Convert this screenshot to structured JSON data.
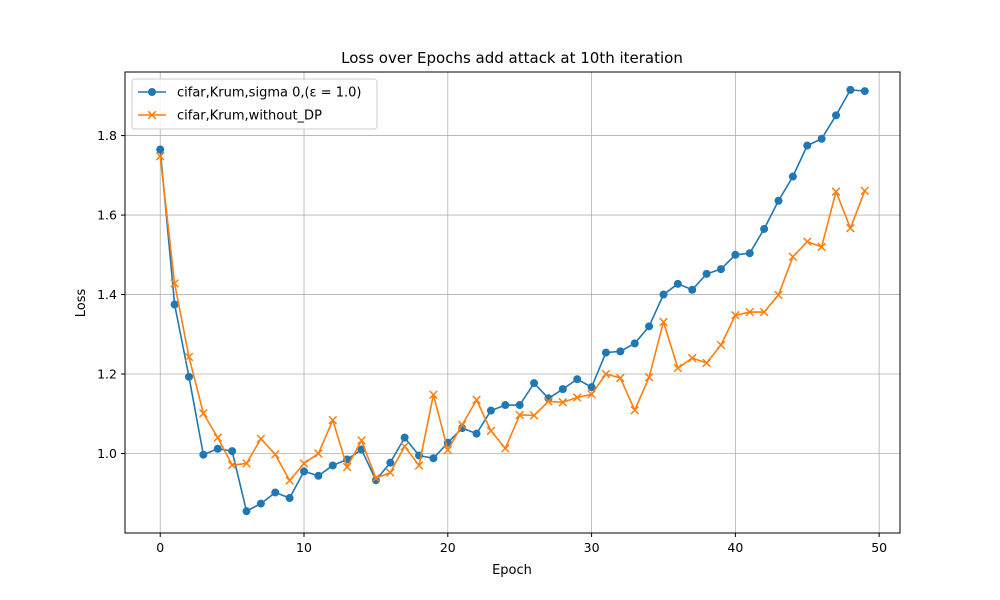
{
  "chart_data": {
    "type": "line",
    "title": "Loss over Epochs add attack at 10th iteration",
    "xlabel": "Epoch",
    "ylabel": "Loss",
    "xlim": [
      -2.45,
      51.45
    ],
    "ylim": [
      0.8,
      1.96
    ],
    "xticks": [
      0,
      10,
      20,
      30,
      40,
      50
    ],
    "yticks": [
      1.0,
      1.2,
      1.4,
      1.6,
      1.8
    ],
    "ytick_labels": [
      "1.0",
      "1.2",
      "1.4",
      "1.6",
      "1.8"
    ],
    "grid": true,
    "legend": "top-left",
    "x": [
      0,
      1,
      2,
      3,
      4,
      5,
      6,
      7,
      8,
      9,
      10,
      11,
      12,
      13,
      14,
      15,
      16,
      17,
      18,
      19,
      20,
      21,
      22,
      23,
      24,
      25,
      26,
      27,
      28,
      29,
      30,
      31,
      32,
      33,
      34,
      35,
      36,
      37,
      38,
      39,
      40,
      41,
      42,
      43,
      44,
      45,
      46,
      47,
      48,
      49
    ],
    "series": [
      {
        "name": "cifar,Krum,sigma 0,(ε = 1.0)",
        "color": "#1f77b4",
        "marker": "circle",
        "values": [
          1.765,
          1.375,
          1.193,
          0.997,
          1.012,
          1.006,
          0.855,
          0.874,
          0.902,
          0.888,
          0.955,
          0.944,
          0.97,
          0.985,
          1.01,
          0.933,
          0.977,
          1.04,
          0.995,
          0.988,
          1.027,
          1.064,
          1.05,
          1.108,
          1.122,
          1.122,
          1.177,
          1.139,
          1.162,
          1.187,
          1.167,
          1.254,
          1.257,
          1.277,
          1.32,
          1.4,
          1.427,
          1.412,
          1.452,
          1.464,
          1.5,
          1.504,
          1.565,
          1.636,
          1.697,
          1.775,
          1.792,
          1.851,
          1.915,
          1.912
        ]
      },
      {
        "name": "cifar,Krum,without_DP",
        "color": "#ff7f0e",
        "marker": "x",
        "values": [
          1.748,
          1.428,
          1.243,
          1.101,
          1.04,
          0.971,
          0.975,
          1.037,
          0.998,
          0.932,
          0.975,
          1.0,
          1.084,
          0.966,
          1.033,
          0.938,
          0.952,
          1.018,
          0.97,
          1.148,
          1.009,
          1.072,
          1.135,
          1.057,
          1.013,
          1.097,
          1.096,
          1.131,
          1.129,
          1.141,
          1.149,
          1.2,
          1.19,
          1.109,
          1.192,
          1.331,
          1.215,
          1.24,
          1.228,
          1.273,
          1.348,
          1.356,
          1.356,
          1.399,
          1.495,
          1.533,
          1.52,
          1.659,
          1.567,
          1.661
        ]
      }
    ]
  }
}
